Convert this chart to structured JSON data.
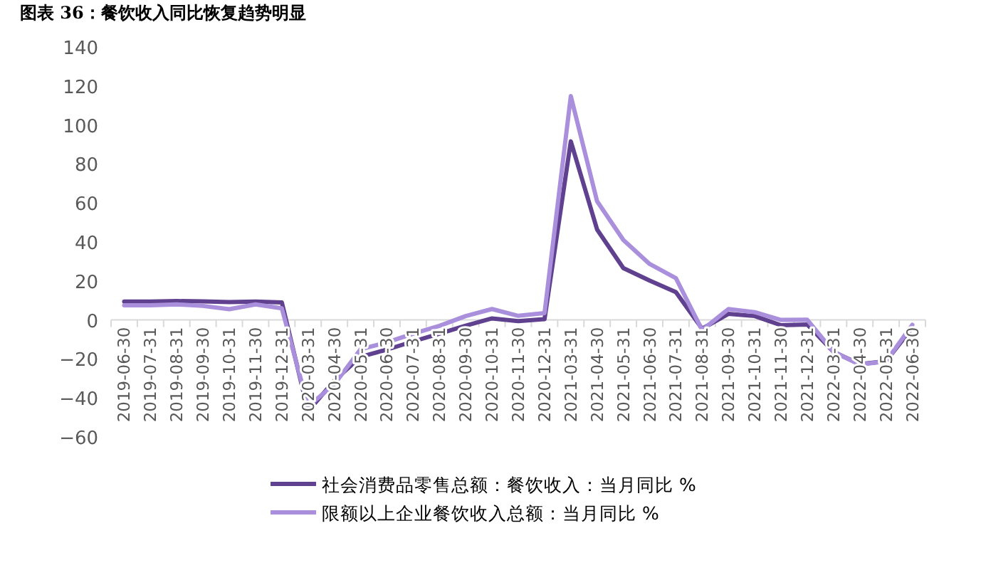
{
  "chart_data": {
    "type": "line",
    "title": "图表 36：餐饮收入同比恢复趋势明显",
    "categories": [
      "2019-06-30",
      "2019-07-31",
      "2019-08-31",
      "2019-09-30",
      "2019-10-31",
      "2019-11-30",
      "2019-12-31",
      "2020-03-31",
      "2020-04-30",
      "2020-05-31",
      "2020-06-30",
      "2020-07-31",
      "2020-08-31",
      "2020-09-30",
      "2020-10-31",
      "2020-11-30",
      "2020-12-31",
      "2021-03-31",
      "2021-04-30",
      "2021-05-31",
      "2021-06-30",
      "2021-07-31",
      "2021-08-31",
      "2021-09-30",
      "2021-10-31",
      "2021-11-30",
      "2021-12-31",
      "2022-03-31",
      "2022-04-30",
      "2022-05-31",
      "2022-06-30"
    ],
    "series": [
      {
        "name": "社会消费品零售总额：餐饮收入：当月同比 %",
        "color": "#60418f",
        "values": [
          9.4,
          9.4,
          9.7,
          9.5,
          9.2,
          9.4,
          9.0,
          -46.8,
          -31.1,
          -18.9,
          -15.2,
          -11,
          -7,
          -2.9,
          0.8,
          -0.6,
          0.4,
          91.6,
          46.4,
          26.6,
          20.2,
          14.3,
          -4.5,
          3.1,
          2.0,
          -2.7,
          -2.3,
          -16.4,
          -22.7,
          -21.1,
          -4.0
        ]
      },
      {
        "name": "限额以上企业餐饮收入总额：当月同比 %",
        "color": "#a98fdc",
        "values": [
          7.5,
          7.5,
          8.0,
          7.2,
          5.5,
          8.0,
          6.0,
          -44.3,
          -33,
          -15,
          -11.5,
          -7,
          -3,
          2,
          5.6,
          2.1,
          3.5,
          114.8,
          60.9,
          41,
          28.7,
          21.4,
          -5.2,
          5.6,
          4,
          0,
          0.1,
          -16.3,
          -22.9,
          -21.2,
          -2.5
        ]
      }
    ],
    "ylim": [
      -60,
      140
    ],
    "yticks": [
      -60,
      -40,
      -20,
      0,
      20,
      40,
      60,
      80,
      100,
      120,
      140
    ],
    "grid": false,
    "legend": "bottom",
    "marker": "none",
    "line_style": "solid"
  }
}
